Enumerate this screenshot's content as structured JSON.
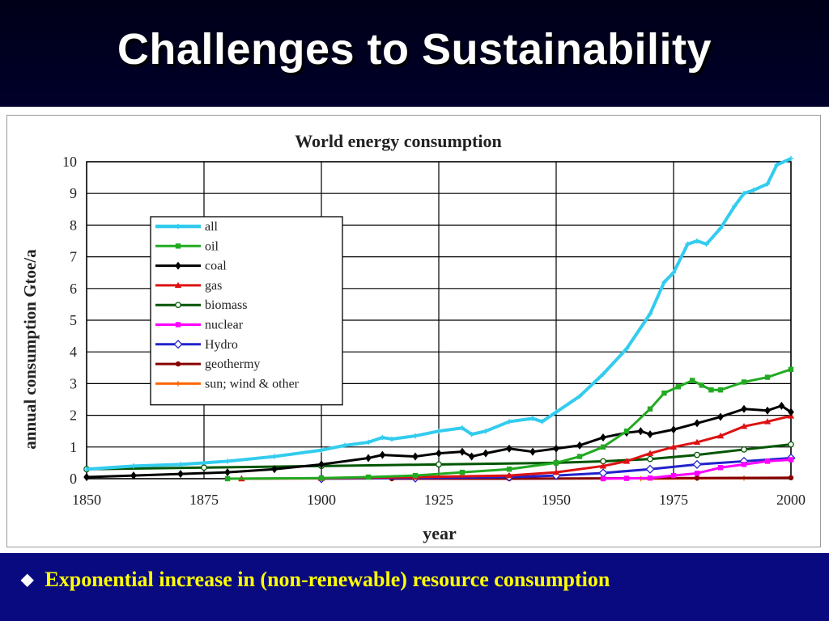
{
  "slide": {
    "title": "Challenges to Sustainability",
    "bullet_text": "Exponential increase in (non-renewable) resource consumption",
    "bullet_icon": "diamond-bullet-icon"
  },
  "colors": {
    "title_background": "#000020",
    "bottom_background": "#0a0a80",
    "bullet_text": "#ffff00"
  },
  "chart_data": {
    "type": "line",
    "title": "World energy consumption",
    "xlabel": "year",
    "ylabel": "annual consumption Gtoe/a",
    "xlim": [
      1850,
      2000
    ],
    "ylim": [
      0,
      10
    ],
    "x_ticks": [
      "1850",
      "1875",
      "1900",
      "1925",
      "1950",
      "1975",
      "2000"
    ],
    "y_ticks": [
      "0",
      "1",
      "2",
      "3",
      "4",
      "5",
      "6",
      "7",
      "8",
      "9",
      "10"
    ],
    "grid": true,
    "legend_position": "top-left",
    "series": [
      {
        "name": "all",
        "color": "#33ccee",
        "marker": "plus",
        "points": [
          [
            1850,
            0.3
          ],
          [
            1860,
            0.4
          ],
          [
            1870,
            0.45
          ],
          [
            1880,
            0.55
          ],
          [
            1890,
            0.7
          ],
          [
            1900,
            0.9
          ],
          [
            1905,
            1.05
          ],
          [
            1910,
            1.15
          ],
          [
            1913,
            1.3
          ],
          [
            1915,
            1.25
          ],
          [
            1920,
            1.35
          ],
          [
            1925,
            1.5
          ],
          [
            1930,
            1.6
          ],
          [
            1932,
            1.4
          ],
          [
            1935,
            1.5
          ],
          [
            1940,
            1.8
          ],
          [
            1945,
            1.9
          ],
          [
            1947,
            1.8
          ],
          [
            1950,
            2.1
          ],
          [
            1955,
            2.6
          ],
          [
            1960,
            3.3
          ],
          [
            1965,
            4.1
          ],
          [
            1970,
            5.2
          ],
          [
            1973,
            6.2
          ],
          [
            1975,
            6.5
          ],
          [
            1978,
            7.4
          ],
          [
            1980,
            7.5
          ],
          [
            1982,
            7.4
          ],
          [
            1985,
            7.9
          ],
          [
            1988,
            8.6
          ],
          [
            1990,
            9.0
          ],
          [
            1992,
            9.1
          ],
          [
            1995,
            9.3
          ],
          [
            1997,
            9.9
          ],
          [
            2000,
            10.1
          ]
        ]
      },
      {
        "name": "oil",
        "color": "#22aa22",
        "marker": "square",
        "points": [
          [
            1880,
            0.0
          ],
          [
            1900,
            0.02
          ],
          [
            1910,
            0.05
          ],
          [
            1920,
            0.1
          ],
          [
            1930,
            0.2
          ],
          [
            1940,
            0.3
          ],
          [
            1950,
            0.5
          ],
          [
            1955,
            0.7
          ],
          [
            1960,
            1.0
          ],
          [
            1965,
            1.5
          ],
          [
            1970,
            2.2
          ],
          [
            1973,
            2.7
          ],
          [
            1976,
            2.9
          ],
          [
            1979,
            3.1
          ],
          [
            1981,
            2.95
          ],
          [
            1983,
            2.8
          ],
          [
            1985,
            2.8
          ],
          [
            1990,
            3.05
          ],
          [
            1995,
            3.2
          ],
          [
            2000,
            3.45
          ]
        ]
      },
      {
        "name": "coal",
        "color": "#000000",
        "marker": "star",
        "points": [
          [
            1850,
            0.05
          ],
          [
            1860,
            0.1
          ],
          [
            1870,
            0.15
          ],
          [
            1880,
            0.2
          ],
          [
            1890,
            0.3
          ],
          [
            1900,
            0.45
          ],
          [
            1910,
            0.65
          ],
          [
            1913,
            0.75
          ],
          [
            1920,
            0.7
          ],
          [
            1925,
            0.8
          ],
          [
            1930,
            0.85
          ],
          [
            1932,
            0.7
          ],
          [
            1935,
            0.8
          ],
          [
            1940,
            0.95
          ],
          [
            1945,
            0.85
          ],
          [
            1950,
            0.95
          ],
          [
            1955,
            1.05
          ],
          [
            1960,
            1.3
          ],
          [
            1965,
            1.45
          ],
          [
            1968,
            1.5
          ],
          [
            1970,
            1.4
          ],
          [
            1975,
            1.55
          ],
          [
            1980,
            1.75
          ],
          [
            1985,
            1.95
          ],
          [
            1990,
            2.2
          ],
          [
            1995,
            2.15
          ],
          [
            1998,
            2.3
          ],
          [
            2000,
            2.1
          ]
        ]
      },
      {
        "name": "gas",
        "color": "#dd1111",
        "marker": "triangle",
        "points": [
          [
            1883,
            0.0
          ],
          [
            1900,
            0.01
          ],
          [
            1920,
            0.05
          ],
          [
            1940,
            0.1
          ],
          [
            1950,
            0.2
          ],
          [
            1960,
            0.4
          ],
          [
            1965,
            0.55
          ],
          [
            1970,
            0.8
          ],
          [
            1975,
            1.0
          ],
          [
            1980,
            1.15
          ],
          [
            1985,
            1.35
          ],
          [
            1990,
            1.65
          ],
          [
            1995,
            1.8
          ],
          [
            2000,
            1.98
          ]
        ]
      },
      {
        "name": "biomass",
        "color": "#005500",
        "marker": "circle-open",
        "points": [
          [
            1850,
            0.3
          ],
          [
            1875,
            0.35
          ],
          [
            1900,
            0.4
          ],
          [
            1925,
            0.45
          ],
          [
            1950,
            0.5
          ],
          [
            1960,
            0.55
          ],
          [
            1970,
            0.62
          ],
          [
            1980,
            0.75
          ],
          [
            1990,
            0.92
          ],
          [
            2000,
            1.08
          ]
        ]
      },
      {
        "name": "nuclear",
        "color": "#ff00ff",
        "marker": "square",
        "points": [
          [
            1960,
            0.0
          ],
          [
            1965,
            0.01
          ],
          [
            1970,
            0.02
          ],
          [
            1975,
            0.1
          ],
          [
            1980,
            0.17
          ],
          [
            1985,
            0.35
          ],
          [
            1990,
            0.45
          ],
          [
            1995,
            0.55
          ],
          [
            2000,
            0.6
          ]
        ]
      },
      {
        "name": "Hydro",
        "color": "#2222cc",
        "marker": "diamond-open",
        "points": [
          [
            1900,
            0.0
          ],
          [
            1920,
            0.02
          ],
          [
            1940,
            0.05
          ],
          [
            1950,
            0.1
          ],
          [
            1960,
            0.18
          ],
          [
            1970,
            0.3
          ],
          [
            1980,
            0.45
          ],
          [
            1990,
            0.55
          ],
          [
            2000,
            0.65
          ]
        ]
      },
      {
        "name": "geothermy",
        "color": "#880000",
        "marker": "circle",
        "points": [
          [
            1915,
            0.0
          ],
          [
            1940,
            0.0
          ],
          [
            1960,
            0.01
          ],
          [
            1980,
            0.02
          ],
          [
            2000,
            0.03
          ]
        ]
      },
      {
        "name": "sun; wind & other",
        "color": "#ff6600",
        "marker": "plus",
        "points": [
          [
            1968,
            0.0
          ],
          [
            1980,
            0.01
          ],
          [
            1990,
            0.02
          ],
          [
            2000,
            0.03
          ]
        ]
      }
    ]
  }
}
